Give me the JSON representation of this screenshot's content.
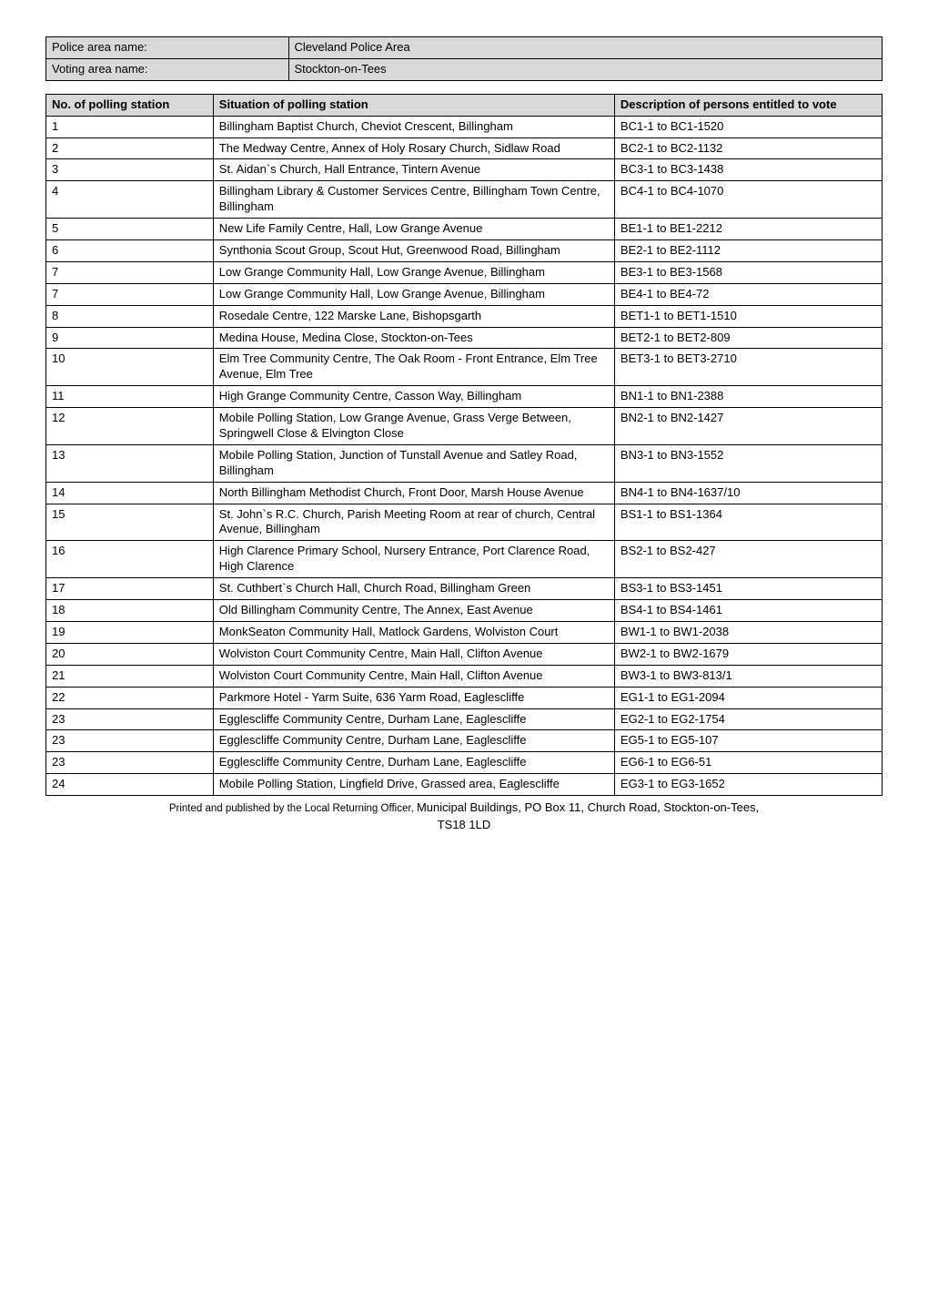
{
  "header": {
    "rows": [
      {
        "label": "Police area name:",
        "value": "Cleveland Police Area"
      },
      {
        "label": "Voting area name:",
        "value": "Stockton-on-Tees"
      }
    ]
  },
  "polling": {
    "columns": [
      "No. of polling station",
      "Situation of polling station",
      "Description of persons entitled to vote"
    ],
    "rows": [
      {
        "no": "1",
        "situation": "Billingham Baptist Church, Cheviot Crescent, Billingham",
        "desc": "BC1-1 to BC1-1520"
      },
      {
        "no": "2",
        "situation": "The Medway Centre, Annex of Holy Rosary Church, Sidlaw Road",
        "desc": "BC2-1 to BC2-1132"
      },
      {
        "no": "3",
        "situation": "St. Aidan`s Church, Hall Entrance, Tintern Avenue",
        "desc": "BC3-1 to BC3-1438"
      },
      {
        "no": "4",
        "situation": "Billingham Library & Customer Services Centre, Billingham Town Centre, Billingham",
        "desc": "BC4-1 to BC4-1070"
      },
      {
        "no": "5",
        "situation": "New Life Family Centre, Hall, Low Grange Avenue",
        "desc": "BE1-1 to BE1-2212"
      },
      {
        "no": "6",
        "situation": "Synthonia Scout Group, Scout Hut, Greenwood Road, Billingham",
        "desc": "BE2-1 to BE2-1112"
      },
      {
        "no": "7",
        "situation": "Low Grange Community Hall, Low Grange Avenue, Billingham",
        "desc": "BE3-1 to BE3-1568"
      },
      {
        "no": "7",
        "situation": "Low Grange Community Hall, Low Grange Avenue, Billingham",
        "desc": "BE4-1 to BE4-72"
      },
      {
        "no": "8",
        "situation": "Rosedale Centre, 122 Marske Lane, Bishopsgarth",
        "desc": "BET1-1 to BET1-1510"
      },
      {
        "no": "9",
        "situation": "Medina House, Medina Close, Stockton-on-Tees",
        "desc": "BET2-1 to BET2-809"
      },
      {
        "no": "10",
        "situation": "Elm Tree Community Centre, The Oak Room - Front Entrance, Elm Tree Avenue, Elm Tree",
        "desc": "BET3-1 to BET3-2710"
      },
      {
        "no": "11",
        "situation": "High Grange Community Centre, Casson Way, Billingham",
        "desc": "BN1-1 to BN1-2388"
      },
      {
        "no": "12",
        "situation": "Mobile Polling Station, Low Grange Avenue, Grass Verge Between, Springwell Close & Elvington Close",
        "desc": "BN2-1 to BN2-1427"
      },
      {
        "no": "13",
        "situation": "Mobile Polling Station, Junction of Tunstall Avenue and Satley Road, Billingham",
        "desc": "BN3-1 to BN3-1552"
      },
      {
        "no": "14",
        "situation": "North Billingham Methodist Church, Front Door, Marsh House Avenue",
        "desc": "BN4-1 to BN4-1637/10"
      },
      {
        "no": "15",
        "situation": "St. John`s R.C. Church, Parish Meeting Room at rear of church, Central Avenue, Billingham",
        "desc": "BS1-1 to BS1-1364"
      },
      {
        "no": "16",
        "situation": "High Clarence Primary School, Nursery Entrance, Port Clarence Road, High Clarence",
        "desc": "BS2-1 to BS2-427"
      },
      {
        "no": "17",
        "situation": "St. Cuthbert`s Church Hall, Church Road, Billingham Green",
        "desc": "BS3-1 to BS3-1451"
      },
      {
        "no": "18",
        "situation": "Old Billingham Community Centre, The Annex, East Avenue",
        "desc": "BS4-1 to BS4-1461"
      },
      {
        "no": "19",
        "situation": "MonkSeaton Community Hall, Matlock Gardens, Wolviston Court",
        "desc": "BW1-1 to BW1-2038"
      },
      {
        "no": "20",
        "situation": "Wolviston Court Community Centre, Main Hall, Clifton Avenue",
        "desc": "BW2-1 to BW2-1679"
      },
      {
        "no": "21",
        "situation": "Wolviston Court Community Centre, Main Hall, Clifton Avenue",
        "desc": "BW3-1 to BW3-813/1"
      },
      {
        "no": "22",
        "situation": "Parkmore Hotel - Yarm Suite, 636 Yarm Road, Eaglescliffe",
        "desc": "EG1-1 to EG1-2094"
      },
      {
        "no": "23",
        "situation": "Egglescliffe Community Centre, Durham Lane, Eaglescliffe",
        "desc": "EG2-1 to EG2-1754"
      },
      {
        "no": "23",
        "situation": "Egglescliffe Community Centre, Durham Lane, Eaglescliffe",
        "desc": "EG5-1 to EG5-107"
      },
      {
        "no": "23",
        "situation": "Egglescliffe Community Centre, Durham Lane, Eaglescliffe",
        "desc": "EG6-1 to EG6-51"
      },
      {
        "no": "24",
        "situation": "Mobile Polling Station, Lingfield Drive, Grassed area, Eaglescliffe",
        "desc": "EG3-1 to EG3-1652"
      }
    ]
  },
  "footer": {
    "line1_small": "Printed and published by the Local Returning Officer, ",
    "line1_big": "Municipal Buildings, PO Box 11, Church Road, Stockton-on-Tees,",
    "line2_big": "TS18 1LD"
  }
}
